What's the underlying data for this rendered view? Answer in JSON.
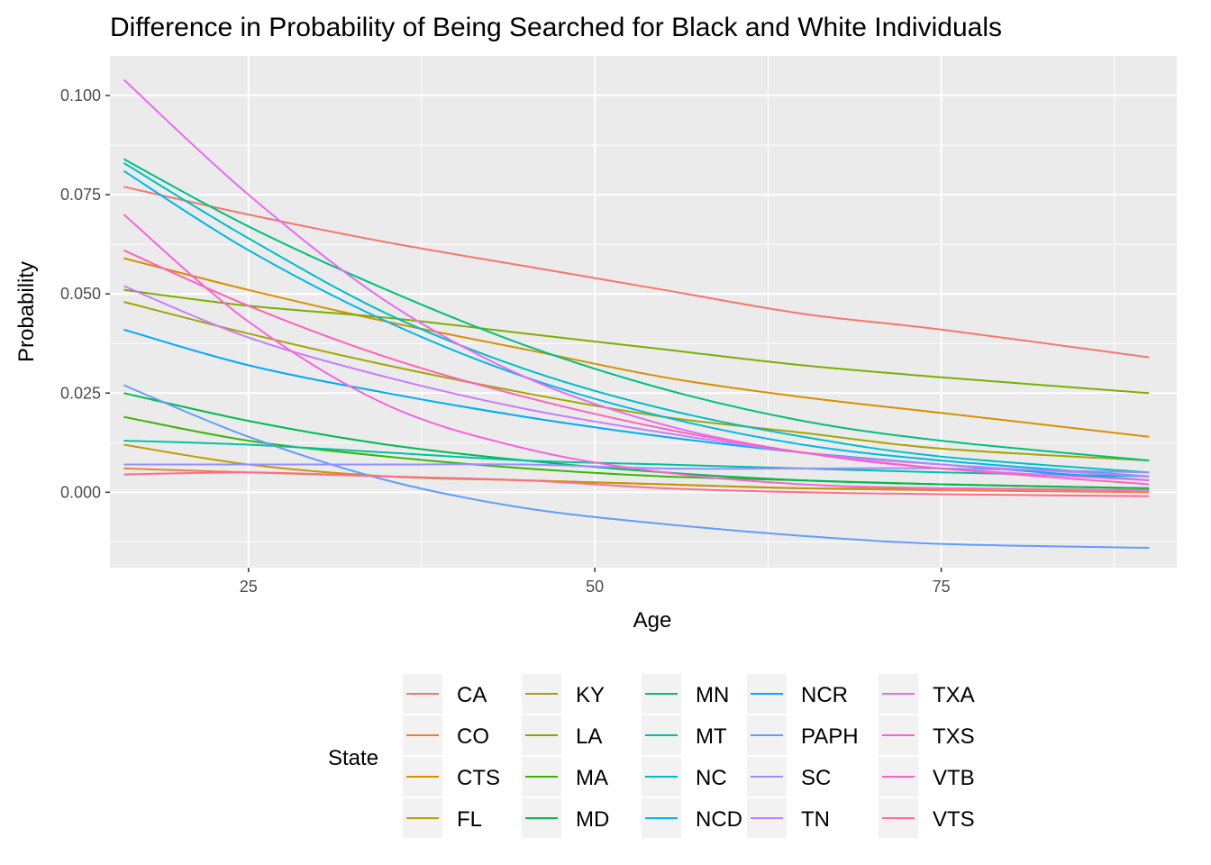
{
  "chart_data": {
    "type": "line",
    "title": "Difference in Probability of Being Searched for Black and White Individuals",
    "xlabel": "Age",
    "ylabel": "Probability",
    "xlim": [
      15,
      92
    ],
    "ylim": [
      -0.019,
      0.11
    ],
    "x_ticks": [
      25,
      50,
      75
    ],
    "x_tick_labels": [
      "25",
      "50",
      "75"
    ],
    "y_ticks": [
      0.0,
      0.025,
      0.05,
      0.075,
      0.1
    ],
    "y_tick_labels": [
      "0.000",
      "0.025",
      "0.050",
      "0.075",
      "0.100"
    ],
    "grid": true,
    "legend": {
      "title": "State",
      "position": "bottom"
    },
    "x": [
      16,
      25,
      35,
      45,
      55,
      65,
      75,
      90
    ],
    "series": [
      {
        "name": "CA",
        "color": "#F8766D",
        "values": [
          0.077,
          0.07,
          0.063,
          0.057,
          0.051,
          0.045,
          0.041,
          0.034
        ]
      },
      {
        "name": "CO",
        "color": "#EA8331",
        "values": [
          0.006,
          0.005,
          0.004,
          0.003,
          0.002,
          0.001,
          0.0005,
          0.0
        ]
      },
      {
        "name": "CTS",
        "color": "#D89000",
        "values": [
          0.059,
          0.051,
          0.043,
          0.036,
          0.029,
          0.024,
          0.02,
          0.014
        ]
      },
      {
        "name": "FL",
        "color": "#C09B00",
        "values": [
          0.012,
          0.007,
          0.004,
          0.003,
          0.002,
          0.001,
          0.001,
          0.0005
        ]
      },
      {
        "name": "KY",
        "color": "#A3A500",
        "values": [
          0.048,
          0.04,
          0.032,
          0.025,
          0.019,
          0.015,
          0.011,
          0.008
        ]
      },
      {
        "name": "LA",
        "color": "#7CAE00",
        "values": [
          0.051,
          0.047,
          0.044,
          0.04,
          0.036,
          0.032,
          0.029,
          0.025
        ]
      },
      {
        "name": "MA",
        "color": "#39B600",
        "values": [
          0.019,
          0.013,
          0.009,
          0.006,
          0.004,
          0.003,
          0.002,
          0.001
        ]
      },
      {
        "name": "MD",
        "color": "#00BB4E",
        "values": [
          0.025,
          0.018,
          0.012,
          0.008,
          0.005,
          0.003,
          0.002,
          0.001
        ]
      },
      {
        "name": "MN",
        "color": "#00BF7D",
        "values": [
          0.084,
          0.067,
          0.051,
          0.037,
          0.026,
          0.018,
          0.013,
          0.008
        ]
      },
      {
        "name": "MT",
        "color": "#00C1A3",
        "values": [
          0.013,
          0.012,
          0.01,
          0.008,
          0.007,
          0.006,
          0.005,
          0.004
        ]
      },
      {
        "name": "NC",
        "color": "#00BFC4",
        "values": [
          0.083,
          0.064,
          0.045,
          0.031,
          0.021,
          0.014,
          0.009,
          0.005
        ]
      },
      {
        "name": "NCD",
        "color": "#00B8E7",
        "values": [
          0.081,
          0.061,
          0.043,
          0.029,
          0.019,
          0.012,
          0.008,
          0.004
        ]
      },
      {
        "name": "NCR",
        "color": "#00A9FF",
        "values": [
          0.041,
          0.032,
          0.025,
          0.019,
          0.014,
          0.01,
          0.007,
          0.003
        ]
      },
      {
        "name": "PAPH",
        "color": "#619CFF",
        "values": [
          0.027,
          0.014,
          0.003,
          -0.004,
          -0.008,
          -0.011,
          -0.013,
          -0.014
        ]
      },
      {
        "name": "SC",
        "color": "#9590FF",
        "values": [
          0.007,
          0.007,
          0.007,
          0.007,
          0.006,
          0.006,
          0.006,
          0.005
        ]
      },
      {
        "name": "TN",
        "color": "#C77CFF",
        "values": [
          0.052,
          0.039,
          0.029,
          0.021,
          0.015,
          0.01,
          0.007,
          0.004
        ]
      },
      {
        "name": "TXA",
        "color": "#E76BF3",
        "values": [
          0.104,
          0.075,
          0.048,
          0.029,
          0.017,
          0.01,
          0.006,
          0.003
        ]
      },
      {
        "name": "TXS",
        "color": "#FA62DB",
        "values": [
          0.07,
          0.043,
          0.022,
          0.011,
          0.005,
          0.002,
          0.001,
          0.0005
        ]
      },
      {
        "name": "VTB",
        "color": "#FF62BC",
        "values": [
          0.061,
          0.047,
          0.034,
          0.024,
          0.016,
          0.01,
          0.006,
          0.002
        ]
      },
      {
        "name": "VTS",
        "color": "#FF6C91",
        "values": [
          0.0045,
          0.005,
          0.004,
          0.003,
          0.001,
          0.0,
          -0.0005,
          -0.001
        ]
      }
    ]
  }
}
